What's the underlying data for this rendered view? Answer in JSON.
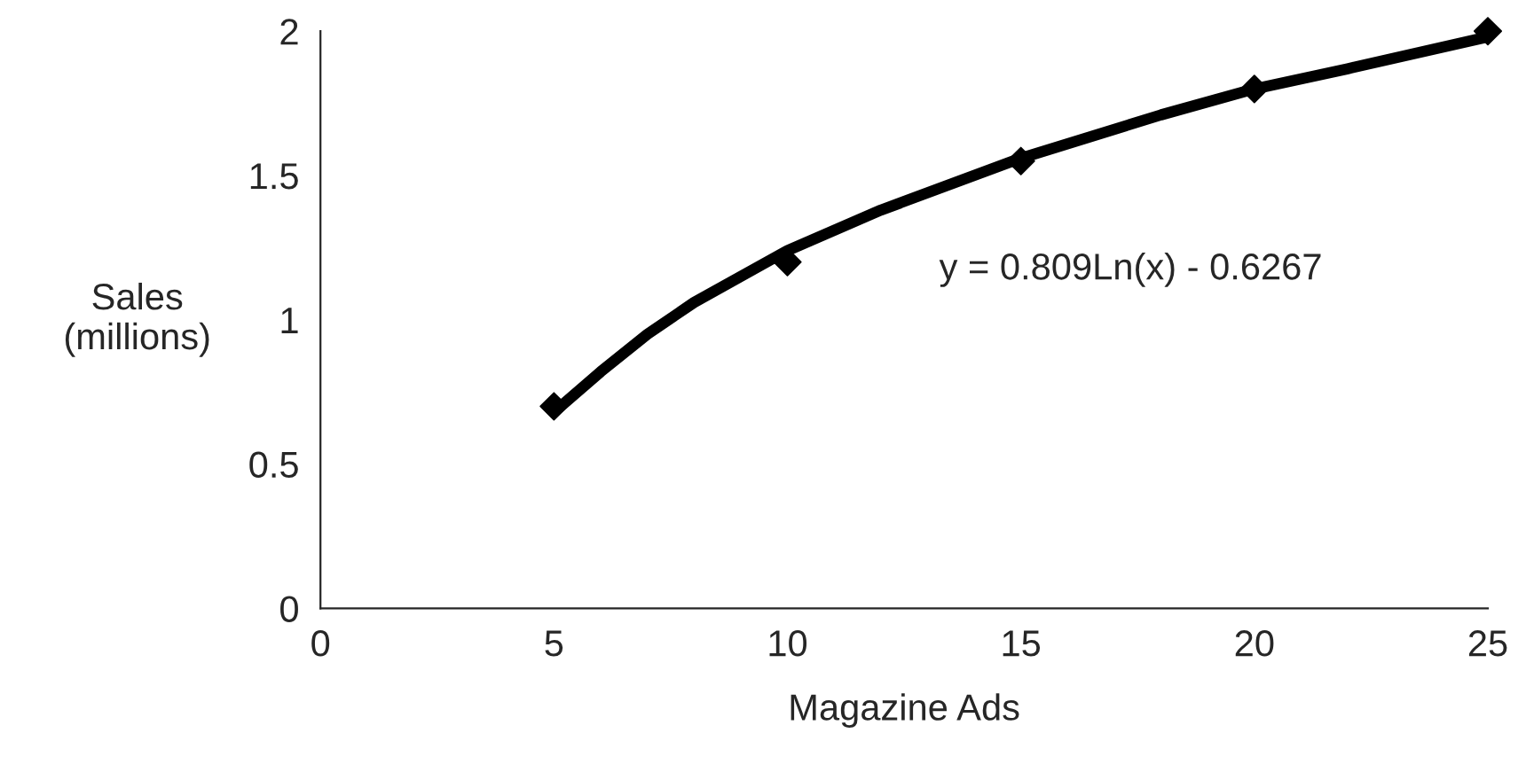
{
  "chart_data": {
    "type": "scatter",
    "xlabel": "Magazine Ads",
    "ylabel": "Sales\n(millions)",
    "xlim": [
      0,
      25
    ],
    "xticks": [
      0,
      5,
      10,
      15,
      20,
      25
    ],
    "ylim": [
      0,
      2
    ],
    "yticks": [
      0,
      {
        "value": 0.5,
        "label": "0.5"
      },
      1,
      {
        "value": 1.5,
        "label": "1.5"
      },
      2
    ],
    "series": [
      {
        "color": "#000000",
        "marker": "diamond",
        "x": [
          5,
          10,
          15,
          20,
          25
        ],
        "values": [
          0.7,
          1.2,
          1.55,
          1.8,
          2.0
        ]
      },
      {
        "type": "line",
        "color": "#000000",
        "marker": "none",
        "line_style": "solid",
        "x": [
          5,
          6,
          7,
          8,
          10,
          12,
          15,
          18,
          20,
          22,
          25
        ],
        "values": [
          0.68,
          0.82,
          0.95,
          1.06,
          1.24,
          1.38,
          1.56,
          1.71,
          1.8,
          1.87,
          1.98
        ]
      }
    ],
    "annotations": [
      "y = 0.809Ln(x) - 0.6267"
    ]
  }
}
